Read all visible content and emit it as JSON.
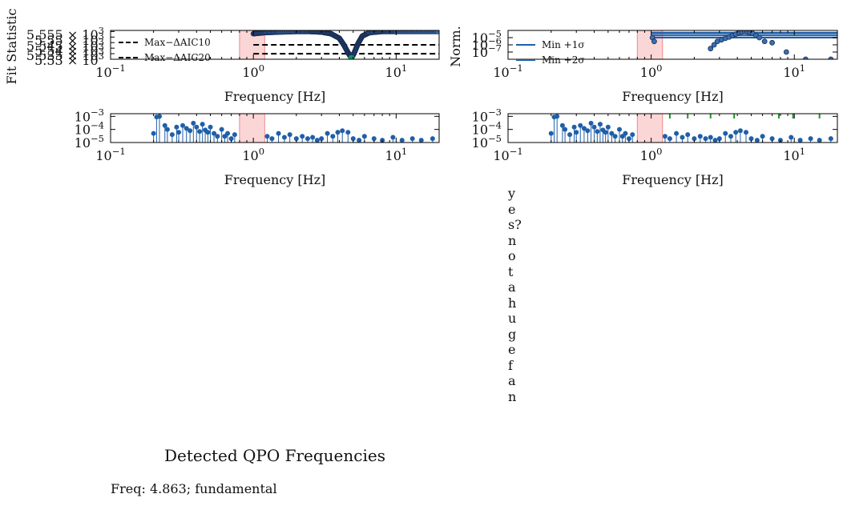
{
  "chart_data": [
    {
      "type": "line+scatter",
      "panel": "fit-statistic",
      "ylabel": "Fit Statistic",
      "xlabel": "Frequency [Hz]",
      "xscale": "log",
      "xlim": [
        0.1,
        20
      ],
      "ylim": [
        5530,
        5556
      ],
      "x_ticks": [
        0.1,
        1,
        10
      ],
      "x_tick_labels": [
        "10",
        "10",
        "10"
      ],
      "x_tick_exps": [
        "−1",
        "0",
        "1"
      ],
      "y_tick_labels": [
        "5.555 × 10",
        "5.55 × 10",
        "5.545 × 10",
        "5.54 × 10",
        "5.535 × 10",
        "5.53 × 10"
      ],
      "y_tick_values": [
        5555,
        5550,
        5545,
        5540,
        5535,
        5530
      ],
      "y_tick_exp": "3",
      "highlight_band": [
        0.8,
        1.2
      ],
      "hlines": [
        {
          "name": "Max−ΔAIC10",
          "y": 5543
        },
        {
          "name": "Max−ΔAIC20",
          "y": 5535
        }
      ],
      "legend": [
        "Max−ΔAIC10",
        "Max−ΔAIC20"
      ],
      "legend_loc": "lower-left",
      "curve": {
        "x": [
          1.0,
          1.2,
          1.5,
          2.0,
          2.5,
          3.0,
          3.5,
          4.0,
          4.3,
          4.6,
          4.863,
          5.1,
          5.4,
          5.8,
          6.5,
          8.0,
          10.0,
          14.0,
          20.0
        ],
        "y": [
          5553,
          5554,
          5554.5,
          5555,
          5555,
          5554.5,
          5553,
          5549,
          5543,
          5536,
          5531,
          5536,
          5544,
          5551,
          5554,
          5555,
          5555,
          5555,
          5555
        ]
      },
      "best_point": {
        "x": 4.863,
        "y": 5531
      }
    },
    {
      "type": "line+scatter",
      "panel": "norm",
      "ylabel": "Norm.",
      "xlabel": "Frequency [Hz]",
      "xscale": "log",
      "yscale": "log",
      "xlim": [
        0.1,
        20
      ],
      "ylim": [
        1e-08,
        0.0001
      ],
      "x_tick_labels": [
        "10",
        "10",
        "10"
      ],
      "x_tick_exps": [
        "−1",
        "0",
        "1"
      ],
      "y_tick_labels": [
        "10",
        "10",
        "10"
      ],
      "y_tick_exps": [
        "−5",
        "−6",
        "−7"
      ],
      "highlight_band": [
        0.8,
        1.2
      ],
      "legend": [
        "Min +1σ",
        "Min +2σ"
      ],
      "legend_loc": "upper-left",
      "bands": [
        {
          "name": "Min +1σ",
          "y_low": 2e-05,
          "y_high": 4e-05,
          "x_start": 1.0,
          "x_end": 20
        },
        {
          "name": "Min +2σ",
          "y_low": 1e-05,
          "y_high": 5e-05,
          "x_start": 1.0,
          "x_end": 20
        }
      ],
      "points": {
        "x": [
          1.02,
          1.05,
          2.6,
          2.75,
          2.9,
          3.1,
          3.3,
          3.5,
          3.7,
          3.9,
          4.1,
          4.3,
          4.5,
          4.7,
          4.9,
          5.1,
          5.4,
          5.7,
          6.2,
          7.0,
          8.8,
          12.0,
          18.0
        ],
        "y": [
          1e-05,
          3e-06,
          3e-07,
          1e-06,
          3e-06,
          5e-06,
          8e-06,
          1.2e-05,
          2e-05,
          3e-05,
          5e-05,
          6e-05,
          7e-05,
          6e-05,
          5e-05,
          4e-05,
          2e-05,
          1e-05,
          3e-06,
          2e-06,
          1e-07,
          1e-08,
          1e-08
        ]
      }
    },
    {
      "type": "stem",
      "panel": "stem-left",
      "xlabel": "Frequency [Hz]",
      "xscale": "log",
      "yscale": "log",
      "xlim": [
        0.1,
        20
      ],
      "ylim": [
        1e-05,
        0.0016
      ],
      "x_tick_labels": [
        "10",
        "10",
        "10"
      ],
      "x_tick_exps": [
        "−1",
        "0",
        "1"
      ],
      "y_tick_labels": [
        "10",
        "10",
        "10"
      ],
      "y_tick_exps": [
        "−3",
        "−4",
        "−5"
      ],
      "highlight_band": [
        0.8,
        1.2
      ],
      "x": [
        0.2,
        0.21,
        0.22,
        0.24,
        0.25,
        0.27,
        0.29,
        0.3,
        0.32,
        0.34,
        0.36,
        0.38,
        0.4,
        0.42,
        0.44,
        0.46,
        0.48,
        0.5,
        0.53,
        0.56,
        0.6,
        0.63,
        0.66,
        0.7,
        0.74,
        1.25,
        1.35,
        1.5,
        1.65,
        1.8,
        2.0,
        2.2,
        2.4,
        2.6,
        2.8,
        3.0,
        3.3,
        3.6,
        3.9,
        4.2,
        4.6,
        5.0,
        5.5,
        6.0,
        7.0,
        8.0,
        9.5,
        11.0,
        13.0,
        15.0,
        18.0
      ],
      "y": [
        5e-05,
        0.0009,
        0.001,
        0.0002,
        0.0001,
        4e-05,
        0.00015,
        6e-05,
        0.0002,
        0.00012,
        8e-05,
        0.0003,
        0.00015,
        7e-05,
        0.00025,
        9e-05,
        6e-05,
        0.00015,
        5e-05,
        3e-05,
        0.0001,
        3e-05,
        5e-05,
        2e-05,
        4e-05,
        3e-05,
        2e-05,
        5e-05,
        2.5e-05,
        4e-05,
        2e-05,
        3e-05,
        2e-05,
        2.5e-05,
        1.5e-05,
        2e-05,
        5e-05,
        3e-05,
        6e-05,
        8e-05,
        6e-05,
        2e-05,
        1.5e-05,
        3e-05,
        2e-05,
        1.5e-05,
        2.5e-05,
        1.5e-05,
        2e-05,
        1.5e-05,
        2e-05
      ]
    },
    {
      "type": "stem",
      "panel": "stem-right",
      "xlabel": "Frequency [Hz]",
      "xscale": "log",
      "yscale": "log",
      "xlim": [
        0.1,
        20
      ],
      "ylim": [
        1e-05,
        0.0016
      ],
      "x_tick_labels": [
        "10",
        "10",
        "10"
      ],
      "x_tick_exps": [
        "−1",
        "0",
        "1"
      ],
      "y_tick_labels": [
        "10",
        "10",
        "10"
      ],
      "y_tick_exps": [
        "−3",
        "−4",
        "−5"
      ],
      "highlight_band": [
        0.8,
        1.2
      ],
      "green_markers": [
        1.35,
        1.8,
        2.6,
        3.8,
        7.8,
        9.8,
        15.0
      ],
      "x": [
        0.2,
        0.21,
        0.22,
        0.24,
        0.25,
        0.27,
        0.29,
        0.3,
        0.32,
        0.34,
        0.36,
        0.38,
        0.4,
        0.42,
        0.44,
        0.46,
        0.48,
        0.5,
        0.53,
        0.56,
        0.6,
        0.63,
        0.66,
        0.7,
        0.74,
        1.25,
        1.35,
        1.5,
        1.65,
        1.8,
        2.0,
        2.2,
        2.4,
        2.6,
        2.8,
        3.0,
        3.3,
        3.6,
        3.9,
        4.2,
        4.6,
        5.0,
        5.5,
        6.0,
        7.0,
        8.0,
        9.5,
        11.0,
        13.0,
        15.0,
        18.0
      ],
      "y": [
        5e-05,
        0.0009,
        0.001,
        0.0002,
        0.0001,
        4e-05,
        0.00015,
        6e-05,
        0.0002,
        0.00012,
        8e-05,
        0.0003,
        0.00015,
        7e-05,
        0.00025,
        9e-05,
        6e-05,
        0.00015,
        5e-05,
        3e-05,
        0.0001,
        3e-05,
        5e-05,
        2e-05,
        4e-05,
        3e-05,
        2e-05,
        5e-05,
        2.5e-05,
        4e-05,
        2e-05,
        3e-05,
        2e-05,
        2.5e-05,
        1.5e-05,
        2e-05,
        5e-05,
        3e-05,
        6e-05,
        8e-05,
        6e-05,
        2e-05,
        1.5e-05,
        3e-05,
        2e-05,
        1.5e-05,
        2.5e-05,
        1.5e-05,
        2e-05,
        1.5e-05,
        2e-05
      ]
    }
  ],
  "text_panel": {
    "title": "Detected QPO Frequencies",
    "line": "Freq: 4.863; fundamental"
  },
  "side_note": "yes? not a huge fan",
  "colors": {
    "series": "#1f5fa8",
    "band": "#f8b4b4",
    "best": "#109060",
    "dash": "#000000"
  }
}
